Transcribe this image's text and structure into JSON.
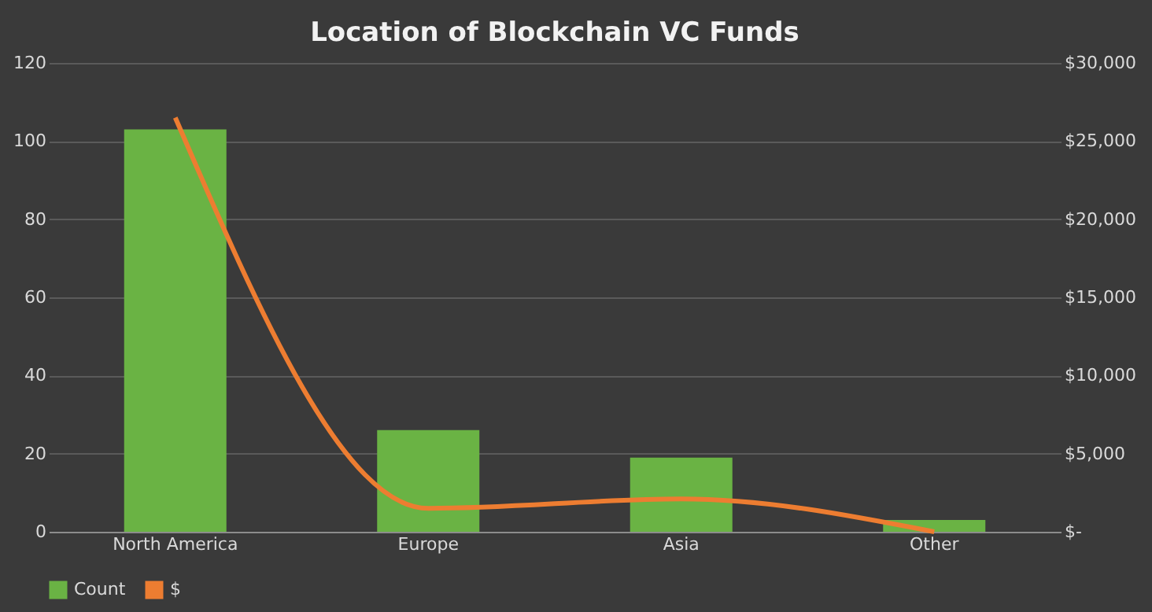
{
  "chart_data": {
    "type": "bar",
    "title": "Location of Blockchain VC Funds",
    "categories": [
      "North America",
      "Europe",
      "Asia",
      "Other"
    ],
    "series": [
      {
        "name": "Count",
        "color": "#6ab344",
        "values": [
          103,
          26,
          19,
          3
        ]
      },
      {
        "name": "$",
        "type": "line",
        "axis": "y2",
        "color": "#ed7d31",
        "values": [
          26500,
          1500,
          2100,
          0
        ]
      }
    ],
    "ylim": [
      0,
      120
    ],
    "yticks": [
      0,
      20,
      40,
      60,
      80,
      100,
      120
    ],
    "y2lim": [
      0,
      30000
    ],
    "y2ticks": [
      {
        "value": 0,
        "label": "$-"
      },
      {
        "value": 5000,
        "label": "$5,000"
      },
      {
        "value": 10000,
        "label": "$10,000"
      },
      {
        "value": 15000,
        "label": "$15,000"
      },
      {
        "value": 20000,
        "label": "$20,000"
      },
      {
        "value": 25000,
        "label": "$25,000"
      },
      {
        "value": 30000,
        "label": "$30,000"
      }
    ],
    "grid": "y",
    "legend": "bottom",
    "line_style": "solid",
    "marker": "none"
  }
}
